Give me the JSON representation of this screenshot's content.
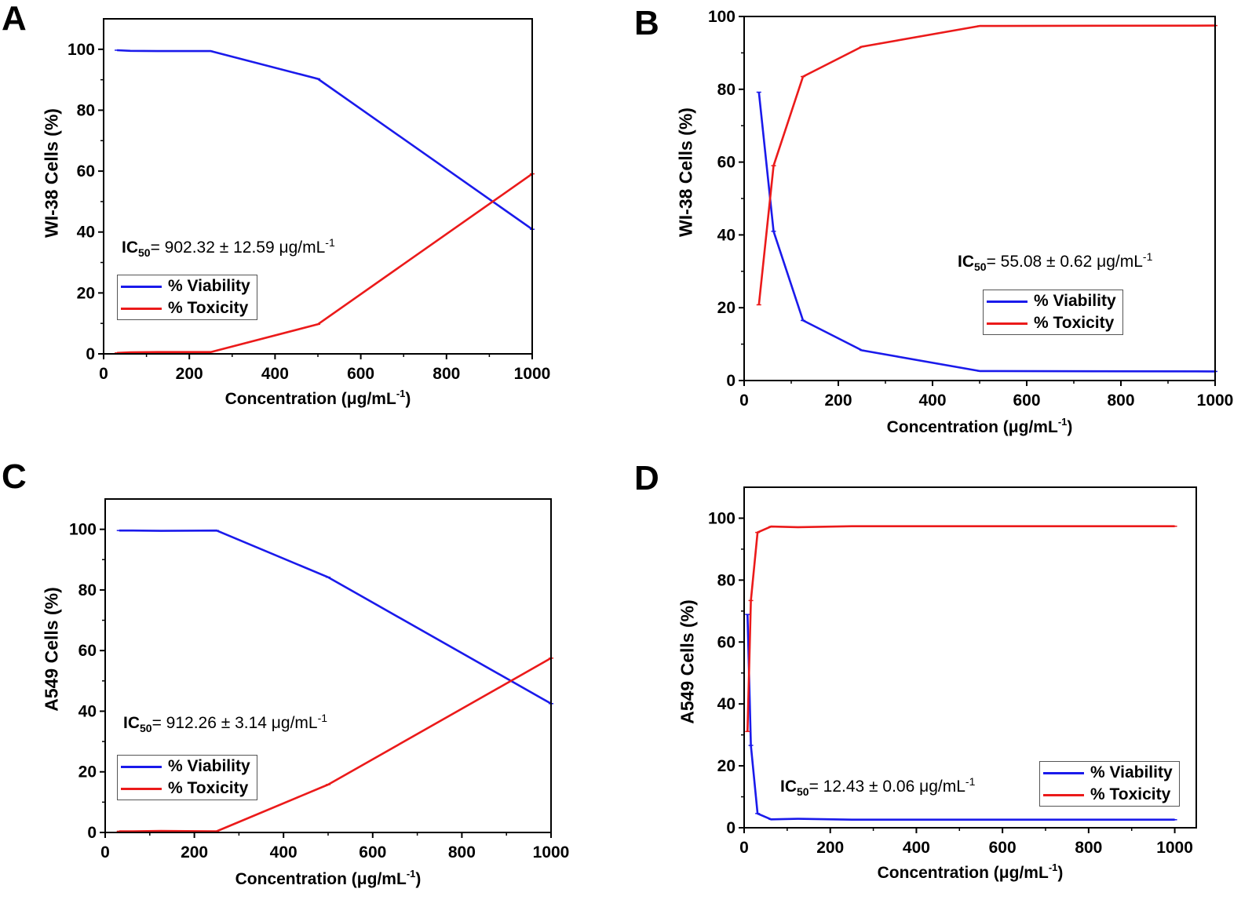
{
  "series_style": {
    "viability_color": "#1a1aeb",
    "toxicity_color": "#eb1a1a"
  },
  "chart_data": [
    {
      "id": "A",
      "type": "line",
      "panel_label": "A",
      "title": "",
      "xlabel_text": "Concentration (",
      "xlabel_unit": "μg/mL",
      "xlabel_sup": "-1",
      "xlabel_close": ")",
      "ylabel": "WI-38 Cells (%)",
      "xlim": [
        0,
        1000
      ],
      "ylim": [
        0,
        110
      ],
      "xticks": [
        0,
        200,
        400,
        600,
        800,
        1000
      ],
      "yticks": [
        0,
        20,
        40,
        60,
        80,
        100
      ],
      "x": [
        31.25,
        62.5,
        125,
        250,
        500,
        1000
      ],
      "series": [
        {
          "name": "% Viability",
          "values": [
            99.7,
            99.5,
            99.4,
            99.4,
            90.3,
            40.9
          ]
        },
        {
          "name": "% Toxicity",
          "values": [
            0.3,
            0.5,
            0.6,
            0.6,
            9.7,
            59.1
          ]
        }
      ],
      "annotation": {
        "prefix": "IC",
        "sub": "50",
        "text": "= 902.32 ± 12.59 μg/mL",
        "sup": "-1"
      },
      "legend": [
        "% Viability",
        "% Toxicity"
      ],
      "legend_position": "center-left"
    },
    {
      "id": "B",
      "type": "line",
      "panel_label": "B",
      "title": "",
      "xlabel_text": "Concentration (",
      "xlabel_unit": "μg/mL",
      "xlabel_sup": "-1",
      "xlabel_close": ")",
      "ylabel": "WI-38 Cells (%)",
      "xlim": [
        0,
        1000
      ],
      "ylim": [
        0,
        100
      ],
      "xticks": [
        0,
        200,
        400,
        600,
        800,
        1000
      ],
      "yticks": [
        0,
        20,
        40,
        60,
        80,
        100
      ],
      "x": [
        31.25,
        62.5,
        125,
        250,
        500,
        1000
      ],
      "series": [
        {
          "name": "% Viability",
          "values": [
            79.2,
            41.0,
            16.5,
            8.3,
            2.6,
            2.5
          ]
        },
        {
          "name": "% Toxicity",
          "values": [
            20.8,
            59.0,
            83.5,
            91.7,
            97.4,
            97.5
          ]
        }
      ],
      "annotation": {
        "prefix": "IC",
        "sub": "50",
        "text": "= 55.08 ± 0.62 μg/mL",
        "sup": "-1"
      },
      "legend": [
        "% Viability",
        "% Toxicity"
      ],
      "legend_position": "center-right"
    },
    {
      "id": "C",
      "type": "line",
      "panel_label": "C",
      "title": "",
      "xlabel_text": "Concentration (",
      "xlabel_unit": "μg/mL",
      "xlabel_sup": "-1",
      "xlabel_close": ")",
      "ylabel": "A549 Cells (%)",
      "xlim": [
        0,
        1000
      ],
      "ylim": [
        0,
        110
      ],
      "xticks": [
        0,
        200,
        400,
        600,
        800,
        1000
      ],
      "yticks": [
        0,
        20,
        40,
        60,
        80,
        100
      ],
      "x": [
        31.25,
        62.5,
        125,
        250,
        500,
        1000
      ],
      "series": [
        {
          "name": "% Viability",
          "values": [
            99.6,
            99.6,
            99.5,
            99.6,
            84.2,
            42.5
          ]
        },
        {
          "name": "% Toxicity",
          "values": [
            0.4,
            0.4,
            0.5,
            0.4,
            15.8,
            57.5
          ]
        }
      ],
      "annotation": {
        "prefix": "IC",
        "sub": "50",
        "text": "= 912.26 ± 3.14 μg/mL",
        "sup": "-1"
      },
      "legend": [
        "% Viability",
        "% Toxicity"
      ],
      "legend_position": "bottom-left"
    },
    {
      "id": "D",
      "type": "line",
      "panel_label": "D",
      "title": "",
      "xlabel_text": "Concentration (",
      "xlabel_unit": "μg/mL",
      "xlabel_sup": "-1",
      "xlabel_close": ")",
      "ylabel": "A549 Cells (%)",
      "xlim": [
        0,
        1050
      ],
      "ylim": [
        0,
        110
      ],
      "xticks": [
        0,
        200,
        400,
        600,
        800,
        1000
      ],
      "yticks": [
        0,
        20,
        40,
        60,
        80,
        100
      ],
      "x": [
        7.8,
        15.6,
        31.25,
        62.5,
        125,
        250,
        500,
        1000
      ],
      "series": [
        {
          "name": "% Viability",
          "values": [
            68.9,
            26.6,
            4.6,
            2.7,
            2.9,
            2.6,
            2.6,
            2.6
          ]
        },
        {
          "name": "% Toxicity",
          "values": [
            31.1,
            73.4,
            95.4,
            97.3,
            97.1,
            97.4,
            97.4,
            97.4
          ]
        }
      ],
      "annotation": {
        "prefix": "IC",
        "sub": "50",
        "text": "= 12.43 ± 0.06 μg/mL",
        "sup": "-1"
      },
      "legend": [
        "% Viability",
        "% Toxicity"
      ],
      "legend_position": "bottom-right"
    }
  ]
}
